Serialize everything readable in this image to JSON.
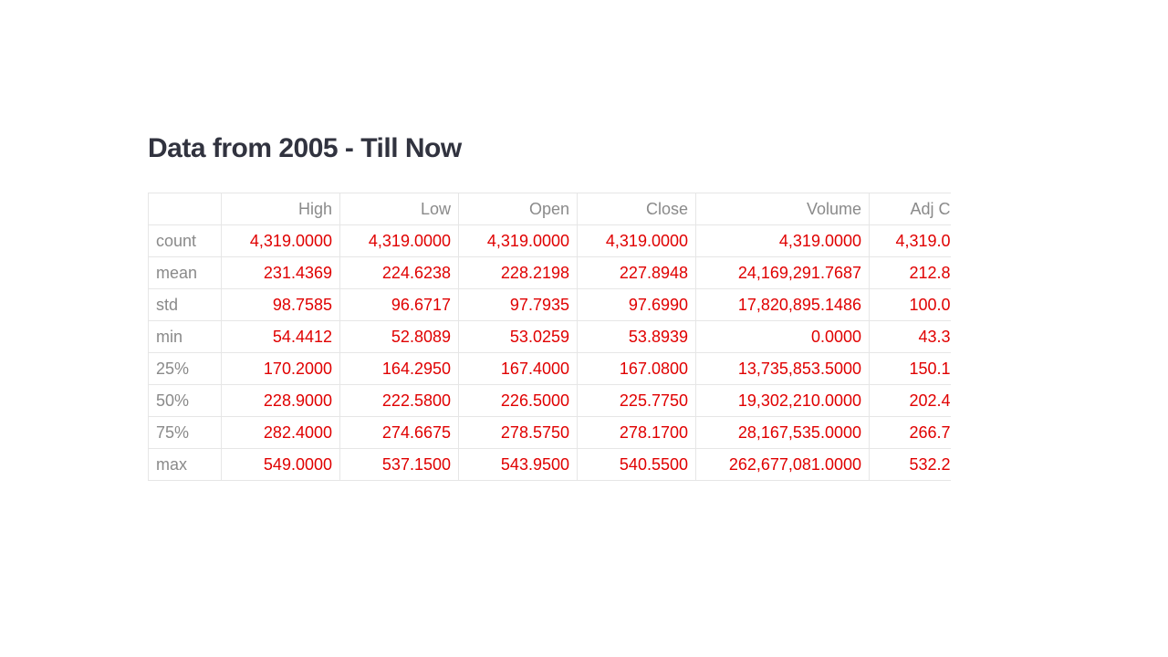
{
  "header": {
    "title": "Data from 2005 - Till Now"
  },
  "table": {
    "columns": [
      "",
      "High",
      "Low",
      "Open",
      "Close",
      "Volume",
      "Adj C"
    ],
    "rows": [
      [
        "count",
        "4,319.0000",
        "4,319.0000",
        "4,319.0000",
        "4,319.0000",
        "4,319.0000",
        "4,319.0"
      ],
      [
        "mean",
        "231.4369",
        "224.6238",
        "228.2198",
        "227.8948",
        "24,169,291.7687",
        "212.8"
      ],
      [
        "std",
        "98.7585",
        "96.6717",
        "97.7935",
        "97.6990",
        "17,820,895.1486",
        "100.0"
      ],
      [
        "min",
        "54.4412",
        "52.8089",
        "53.0259",
        "53.8939",
        "0.0000",
        "43.3"
      ],
      [
        "25%",
        "170.2000",
        "164.2950",
        "167.4000",
        "167.0800",
        "13,735,853.5000",
        "150.1"
      ],
      [
        "50%",
        "228.9000",
        "222.5800",
        "226.5000",
        "225.7750",
        "19,302,210.0000",
        "202.4"
      ],
      [
        "75%",
        "282.4000",
        "274.6675",
        "278.5750",
        "278.1700",
        "28,167,535.0000",
        "266.7"
      ],
      [
        "max",
        "549.0000",
        "537.1500",
        "543.9500",
        "540.5500",
        "262,677,081.0000",
        "532.2"
      ]
    ]
  }
}
